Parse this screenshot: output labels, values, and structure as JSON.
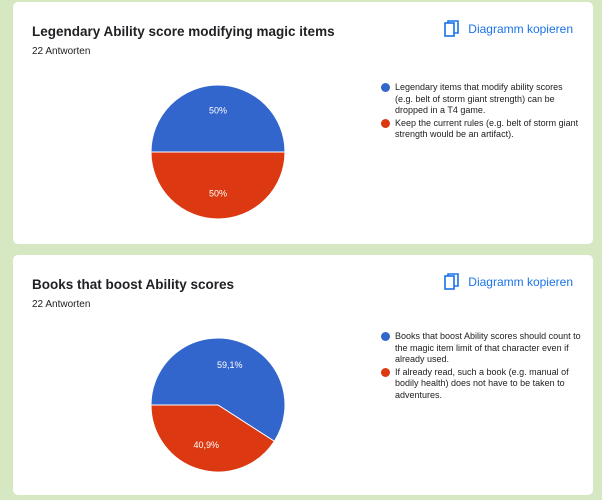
{
  "colors": {
    "background": "#d5e8c2",
    "card": "#ffffff",
    "accent": "#1a73e8",
    "series_blue": "#3366cc",
    "series_red": "#dc3912"
  },
  "copy_icon": "copy-icon",
  "cards": [
    {
      "title": "Legendary Ability score modifying magic items",
      "count": "22 Antworten",
      "copy_label": "Diagramm kopieren",
      "legend": [
        "Legendary items that modify ability scores (e.g. belt of storm giant strength) can be dropped in a T4 game.",
        "Keep the current rules (e.g. belt of storm giant strength would be an artifact)."
      ],
      "slice_labels": [
        "50%",
        "50%"
      ]
    },
    {
      "title": "Books that boost Ability scores",
      "count": "22 Antworten",
      "copy_label": "Diagramm kopieren",
      "legend": [
        "Books that boost Ability scores should count to the magic item limit of that character even if already used.",
        "If already read, such a book (e.g. manual of bodily health) does not have to be taken to adventures."
      ],
      "slice_labels": [
        "59,1%",
        "40,9%"
      ]
    }
  ],
  "chart_data": [
    {
      "type": "pie",
      "title": "Legendary Ability score modifying magic items",
      "categories": [
        "Legendary items that modify ability scores (e.g. belt of storm giant strength) can be dropped in a T4 game.",
        "Keep the current rules (e.g. belt of storm giant strength would be an artifact)."
      ],
      "values": [
        50,
        50
      ],
      "colors": [
        "#3366cc",
        "#dc3912"
      ],
      "legend_position": "right"
    },
    {
      "type": "pie",
      "title": "Books that boost Ability scores",
      "categories": [
        "Books that boost Ability scores should count to the magic item limit of that character even if already used.",
        "If already read, such a book (e.g. manual of bodily health) does not have to be taken to adventures."
      ],
      "values": [
        59.1,
        40.9
      ],
      "colors": [
        "#3366cc",
        "#dc3912"
      ],
      "legend_position": "right"
    }
  ]
}
